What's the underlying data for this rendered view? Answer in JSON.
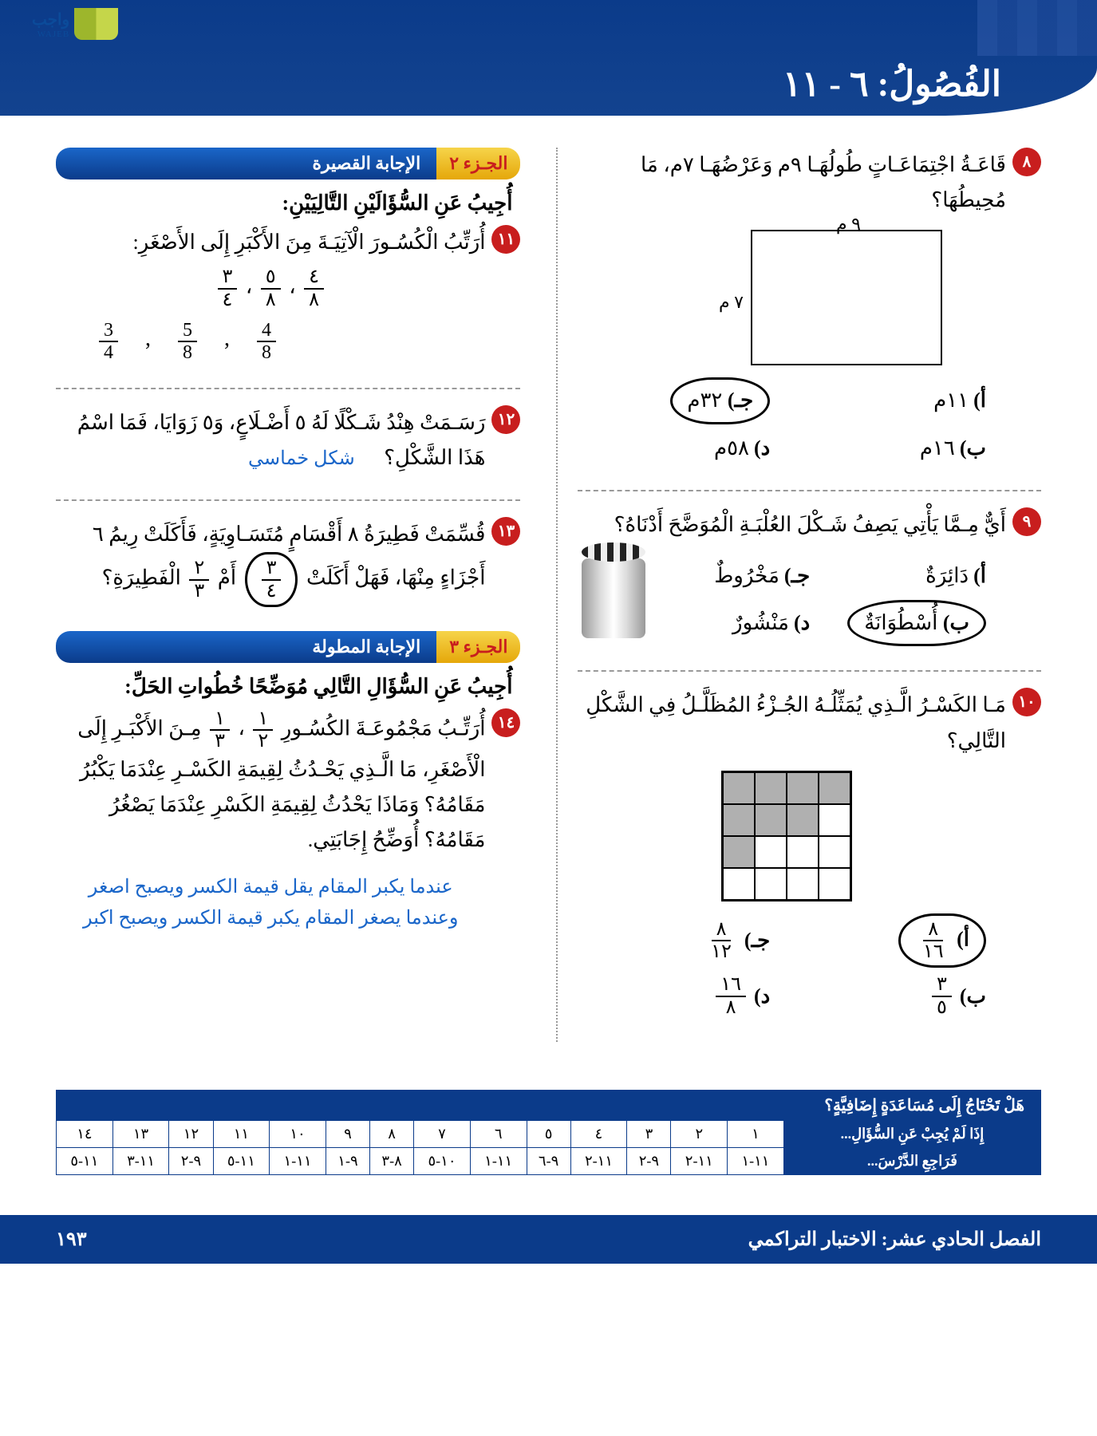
{
  "header": {
    "logo_text": "واجب",
    "logo_sub": "WAJEB",
    "page_title": "الفُصُولُ: ٦ - ١١"
  },
  "colors": {
    "primary": "#0b3b8a",
    "accent_red": "#c81e1e",
    "gold": "#e5a70a",
    "blue_ans": "#1a66c9",
    "shade": "#b0b0b0"
  },
  "right_col": {
    "q8": {
      "num": "٨",
      "text": "قَاعَـةُ اجْتِمَاعَـاتٍ طُولُهَـا ٩م وَعَرْضُهَـا ٧م، مَا مُحِيطُهَا؟",
      "rect": {
        "top": "٩ م",
        "side": "٧ م"
      },
      "opts": {
        "a_k": "أ)",
        "a_v": "١١م",
        "c_k": "جـ)",
        "c_v": "٣٢م",
        "b_k": "ب)",
        "b_v": "١٦م",
        "d_k": "د)",
        "d_v": "٥٨م"
      },
      "correct": "c"
    },
    "q9": {
      "num": "٩",
      "text": "أَيٌّ مِـمَّا يَأْتِي يَصِفُ شَـكْلَ العُلْبَـةِ الْمُوَضَّحَ أَدْنَاهُ؟",
      "opts": {
        "a_k": "أ)",
        "a_v": "دَائِرَةٌ",
        "c_k": "جـ)",
        "c_v": "مَخْرُوطٌ",
        "b_k": "ب)",
        "b_v": "أُسْطُوَانَةٌ",
        "d_k": "د)",
        "d_v": "مَنْشُورٌ"
      },
      "correct": "b"
    },
    "q10": {
      "num": "١٠",
      "text": "مَـا الكَسْـرُ الَّـذِي يُمَثِّلُـهُ الجُـزْءُ المُظَلَّـلُ فِي الشَّكْلِ التَّالِي؟",
      "shaded_cells": [
        0,
        1,
        2,
        3,
        5,
        6,
        7,
        11
      ],
      "grid_cols": 4,
      "grid_rows": 4,
      "opts": {
        "a_k": "أ)",
        "a_n": "٨",
        "a_d": "١٦",
        "c_k": "جـ)",
        "c_n": "٨",
        "c_d": "١٢",
        "b_k": "ب)",
        "b_n": "٣",
        "b_d": "٥",
        "d_k": "د)",
        "d_n": "١٦",
        "d_d": "٨"
      },
      "correct": "a"
    }
  },
  "left_col": {
    "section2": {
      "a": "الجـزء ٢",
      "b": "الإجابة القصيرة"
    },
    "lead2": "أُجِيبُ عَنِ السُّؤَالَيْنِ التَّالِيَيْنِ:",
    "q11": {
      "num": "١١",
      "text": "أُرَتِّبُ الْكُسُـورَ الْآتِيَـةَ مِنَ الأَكْبَرِ إِلَى الأَصْغَرِ:",
      "given": [
        {
          "n": "٤",
          "d": "٨"
        },
        {
          "n": "٥",
          "d": "٨"
        },
        {
          "n": "٣",
          "d": "٤"
        }
      ],
      "given_sep": " ، ",
      "answer": [
        {
          "n": "3",
          "d": "4"
        },
        {
          "n": "5",
          "d": "8"
        },
        {
          "n": "4",
          "d": "8"
        }
      ],
      "ans_sep": " , "
    },
    "q12": {
      "num": "١٢",
      "text": "رَسَـمَتْ هِنْدُ شَـكْلًا لَهُ ٥ أَضْـلَاعٍ، وَ٥ زَوَايَا، فَمَا اسْمُ هَذَا الشَّكْلِ؟",
      "answer": "شكل خماسي"
    },
    "q13": {
      "num": "١٣",
      "text_a": "قُسِّمَتْ فَطِيرَةُ ٨ أَقْسَامٍ مُتَسَـاوِيَةٍ، فَأَكَلَتْ رِيمُ ٦ أَجْزَاءٍ مِنْهَا، فَهَلْ أَكَلَتْ ",
      "f1": {
        "n": "٣",
        "d": "٤"
      },
      "mid": " أَمْ ",
      "f2": {
        "n": "٢",
        "d": "٣"
      },
      "tail": " الْفَطِيرَةِ؟",
      "circled_f": "f1"
    },
    "section3": {
      "a": "الجـزء ٣",
      "b": "الإجابة المطولة"
    },
    "lead3": "أُجِيبُ عَنِ السُّؤَالِ التَّالِي مُوَضِّحًا خُطُواتِ الحَلِّ:",
    "q14": {
      "num": "١٤",
      "text_a": "أُرَتِّـبُ مَجْمُوعَـةَ الكُسُـورِ ",
      "fracs": [
        {
          "n": "١",
          "d": "٢"
        },
        {
          "n": "١",
          "d": "٣"
        }
      ],
      "sep": " ، ",
      "text_b": " مِـنَ الأَكْبَـرِ إِلَى الْأَصْغَرِ، مَا الَّـذِي يَحْـدُثُ لِقِيمَةِ الكَسْـرِ عِنْدَمَا يَكْبُرُ مَقَامُهُ؟ وَمَاذَا يَحْدُثُ لِقِيمَةِ الكَسْرِ عِنْدَمَا يَصْغُرُ مَقَامُهُ؟ أُوَضِّحُ إِجَابَتِي.",
      "answer": "عندما يكبر المقام يقل قيمة الكسر ويصبح اصغر وعندما يصغر المقام يكبر قيمة الكسر ويصبح اكبر"
    }
  },
  "help_table": {
    "title": "هَلْ تَحْتَاجُ إِلَى مُسَاعَدَةٍ إِضَافِيَّةٍ؟",
    "row1_head": "إِذَا لَمْ يُجِبْ عَنِ السُّؤَالِ...",
    "row2_head": "فَرَاجِعِ الدَّرْسَ...",
    "cols": [
      "١",
      "٢",
      "٣",
      "٤",
      "٥",
      "٦",
      "٧",
      "٨",
      "٩",
      "١٠",
      "١١",
      "١٢",
      "١٣",
      "١٤"
    ],
    "lessons": [
      "١١-١",
      "١١-٢",
      "٩-٢",
      "١١-٢",
      "٩-٦",
      "١١-١",
      "١٠-٥",
      "٨-٣",
      "٩-١",
      "١١-١",
      "١١-٥",
      "٩-٢",
      "١١-٣",
      "١١-٥"
    ]
  },
  "footer": {
    "chapter": "الفصل الحادي عشر:  الاختبار التراكمي",
    "page_num": "١٩٣"
  }
}
